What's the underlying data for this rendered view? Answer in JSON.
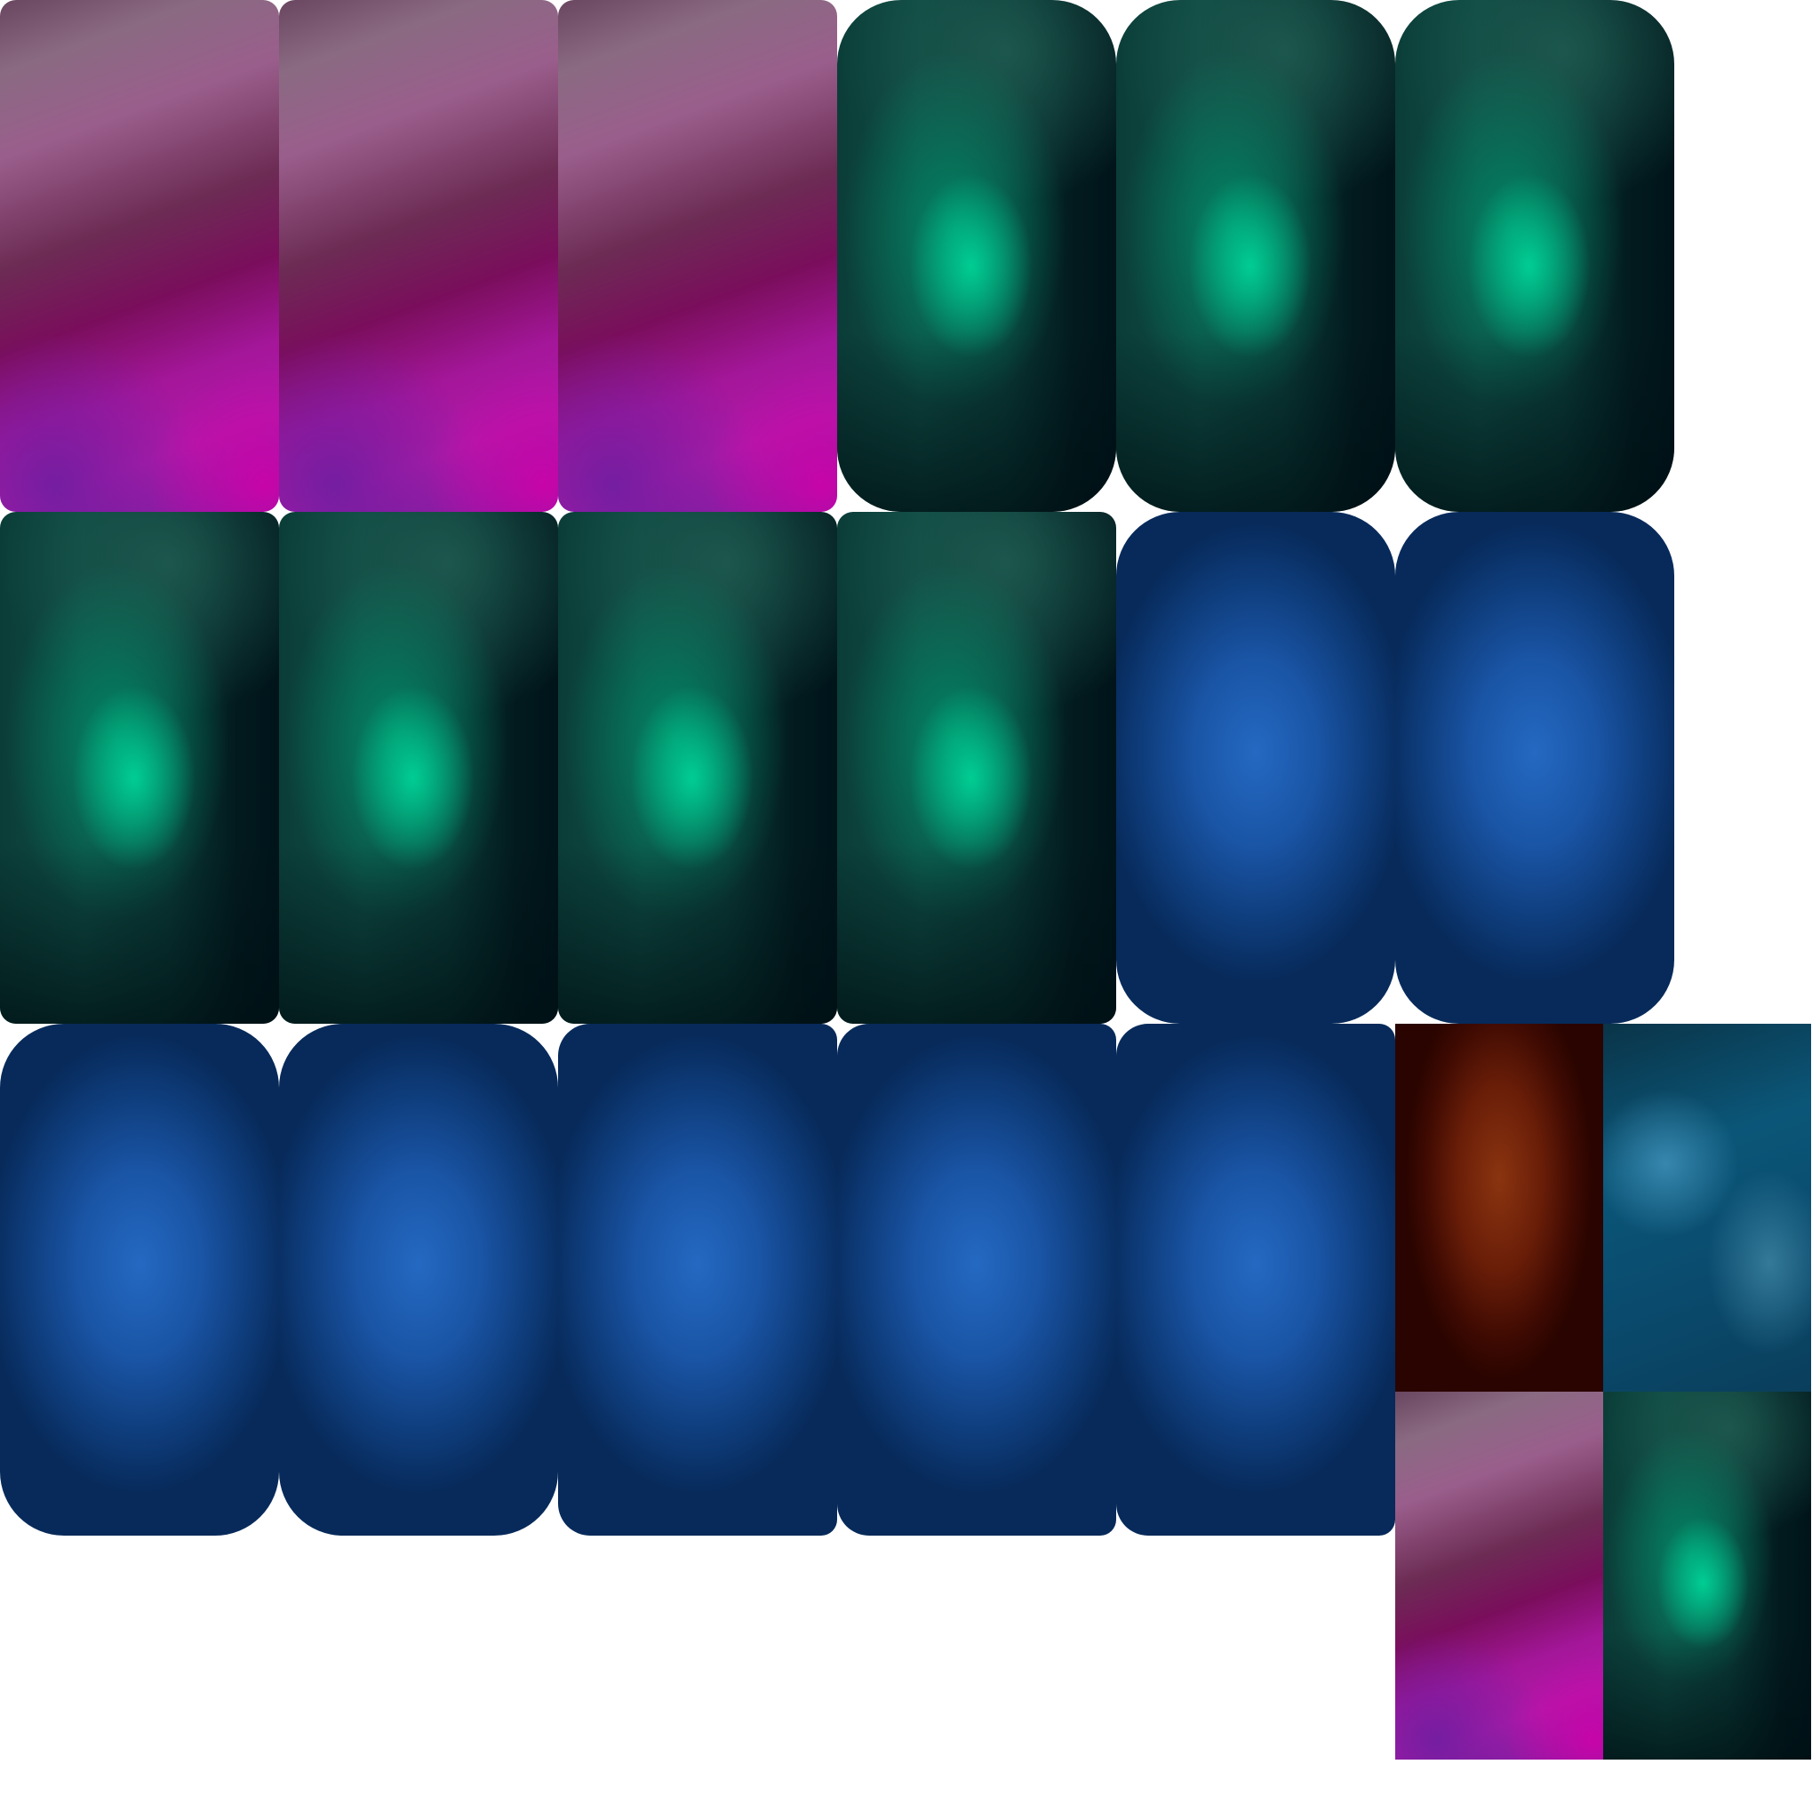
{
  "atlas": {
    "background": "#ffffff",
    "skins": {
      "magenta": "#b01aa8",
      "teal": "#00c08c",
      "blue": "#2469c2",
      "rust": "#8a3410",
      "ocean": "#0b5678"
    },
    "tiles": [
      {
        "name": "card-magenta-1",
        "skin": "magenta"
      },
      {
        "name": "card-magenta-2",
        "skin": "magenta"
      },
      {
        "name": "card-magenta-3",
        "skin": "magenta"
      },
      {
        "name": "card-teal-1",
        "skin": "teal"
      },
      {
        "name": "card-teal-2",
        "skin": "teal"
      },
      {
        "name": "card-teal-3",
        "skin": "teal"
      },
      {
        "name": "card-teal-4",
        "skin": "teal"
      },
      {
        "name": "card-teal-5",
        "skin": "teal"
      },
      {
        "name": "card-teal-6",
        "skin": "teal"
      },
      {
        "name": "card-teal-7",
        "skin": "teal"
      },
      {
        "name": "card-blue-1",
        "skin": "blue"
      },
      {
        "name": "card-blue-2",
        "skin": "blue"
      },
      {
        "name": "card-blue-3",
        "skin": "blue"
      },
      {
        "name": "card-blue-4",
        "skin": "blue"
      },
      {
        "name": "card-blue-5",
        "skin": "blue"
      },
      {
        "name": "card-blue-6",
        "skin": "blue"
      },
      {
        "name": "card-blue-7",
        "skin": "blue"
      },
      {
        "name": "swatch-rust",
        "skin": "rust"
      },
      {
        "name": "swatch-ocean",
        "skin": "ocean"
      },
      {
        "name": "swatch-magenta",
        "skin": "magenta"
      },
      {
        "name": "swatch-teal",
        "skin": "teal"
      }
    ]
  }
}
